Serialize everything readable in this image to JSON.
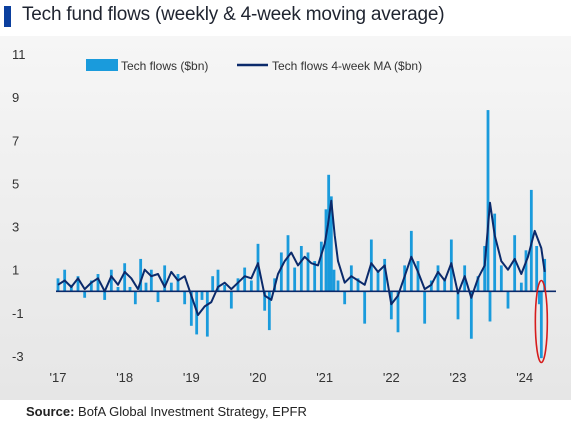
{
  "title": "Tech fund flows (weekly & 4-week moving average)",
  "source_label": "Source:",
  "source_text": "BofA Global Investment Strategy, EPFR",
  "colors": {
    "bars": "#1a9bdc",
    "ma_line": "#0b2a6b",
    "zero_line": "#0b2a6b",
    "highlight": "#d61c1c",
    "title_accent": "#0b3f9e"
  },
  "chart_data": {
    "type": "bar",
    "legend": [
      {
        "label": "Tech flows ($bn)",
        "kind": "bar"
      },
      {
        "label": "Tech flows 4-week MA ($bn)",
        "kind": "line"
      }
    ],
    "legend_position": "top",
    "y_ticks": [
      11,
      9,
      7,
      5,
      3,
      1,
      -1,
      -3
    ],
    "ylim": [
      -3,
      11
    ],
    "x_ticks": [
      "'17",
      "'18",
      "'19",
      "'20",
      "'21",
      "'22",
      "'23",
      "'24"
    ],
    "x_tick_years": [
      2017,
      2018,
      2019,
      2020,
      2021,
      2022,
      2023,
      2024
    ],
    "xlim": [
      2017.0,
      2024.35
    ],
    "series": [
      {
        "name": "Tech flows ($bn)",
        "type": "bar",
        "x": [
          2017.0,
          2017.1,
          2017.2,
          2017.3,
          2017.4,
          2017.5,
          2017.6,
          2017.7,
          2017.8,
          2017.9,
          2018.0,
          2018.08,
          2018.16,
          2018.24,
          2018.32,
          2018.4,
          2018.5,
          2018.6,
          2018.7,
          2018.8,
          2018.9,
          2019.0,
          2019.08,
          2019.16,
          2019.24,
          2019.32,
          2019.4,
          2019.5,
          2019.6,
          2019.7,
          2019.8,
          2019.9,
          2020.0,
          2020.1,
          2020.17,
          2020.25,
          2020.35,
          2020.45,
          2020.55,
          2020.65,
          2020.75,
          2020.85,
          2020.95,
          2021.02,
          2021.06,
          2021.1,
          2021.14,
          2021.2,
          2021.3,
          2021.4,
          2021.5,
          2021.6,
          2021.7,
          2021.8,
          2021.9,
          2022.0,
          2022.1,
          2022.2,
          2022.3,
          2022.4,
          2022.5,
          2022.6,
          2022.7,
          2022.8,
          2022.9,
          2023.0,
          2023.1,
          2023.2,
          2023.3,
          2023.4,
          2023.45,
          2023.48,
          2023.55,
          2023.65,
          2023.75,
          2023.85,
          2023.95,
          2024.02,
          2024.1,
          2024.18,
          2024.22,
          2024.25,
          2024.3
        ],
        "y": [
          0.6,
          1.0,
          0.3,
          0.7,
          -0.3,
          0.5,
          0.8,
          -0.4,
          1.0,
          0.2,
          1.3,
          0.2,
          -0.6,
          1.5,
          0.4,
          1.0,
          -0.5,
          1.2,
          0.4,
          0.8,
          -0.6,
          -1.6,
          -2.0,
          -0.4,
          -2.1,
          0.7,
          1.0,
          0.3,
          -0.8,
          0.6,
          1.1,
          0.5,
          2.2,
          -0.9,
          -1.8,
          0.6,
          1.8,
          2.6,
          1.1,
          2.1,
          1.8,
          1.4,
          2.3,
          3.8,
          5.4,
          4.4,
          1.0,
          0.5,
          -0.6,
          1.2,
          0.6,
          -1.5,
          2.4,
          0.9,
          1.5,
          -1.3,
          -1.9,
          1.2,
          2.8,
          1.4,
          -1.5,
          0.5,
          1.2,
          0.6,
          2.4,
          -1.3,
          1.2,
          -2.2,
          0.7,
          2.1,
          8.4,
          -1.4,
          3.6,
          1.2,
          -0.8,
          2.6,
          0.4,
          1.9,
          4.7,
          2.1,
          -0.6,
          -3.1,
          1.5
        ]
      },
      {
        "name": "Tech flows 4-week MA ($bn)",
        "type": "line",
        "x": [
          2017.0,
          2017.1,
          2017.2,
          2017.3,
          2017.4,
          2017.5,
          2017.6,
          2017.7,
          2017.8,
          2017.9,
          2018.0,
          2018.1,
          2018.2,
          2018.3,
          2018.4,
          2018.5,
          2018.6,
          2018.7,
          2018.8,
          2018.9,
          2019.0,
          2019.1,
          2019.2,
          2019.3,
          2019.4,
          2019.5,
          2019.6,
          2019.7,
          2019.8,
          2019.9,
          2020.0,
          2020.1,
          2020.2,
          2020.3,
          2020.4,
          2020.5,
          2020.6,
          2020.7,
          2020.8,
          2020.9,
          2021.0,
          2021.05,
          2021.1,
          2021.15,
          2021.2,
          2021.3,
          2021.4,
          2021.5,
          2021.6,
          2021.7,
          2021.8,
          2021.9,
          2022.0,
          2022.1,
          2022.2,
          2022.3,
          2022.4,
          2022.5,
          2022.6,
          2022.7,
          2022.8,
          2022.9,
          2023.0,
          2023.1,
          2023.2,
          2023.3,
          2023.4,
          2023.48,
          2023.55,
          2023.65,
          2023.75,
          2023.85,
          2023.95,
          2024.05,
          2024.15,
          2024.25,
          2024.3
        ],
        "y": [
          0.3,
          0.5,
          0.2,
          0.6,
          0.1,
          0.4,
          0.6,
          0.0,
          0.7,
          0.3,
          0.9,
          0.6,
          0.1,
          1.0,
          0.7,
          0.8,
          0.2,
          0.9,
          0.5,
          0.7,
          -0.2,
          -1.1,
          -0.7,
          -0.5,
          0.2,
          0.4,
          0.1,
          0.4,
          0.7,
          0.6,
          1.3,
          -0.2,
          -0.4,
          0.8,
          1.4,
          1.8,
          1.2,
          1.6,
          1.3,
          1.2,
          2.2,
          3.1,
          4.2,
          2.6,
          1.4,
          0.4,
          0.7,
          0.5,
          0.3,
          1.3,
          0.9,
          1.2,
          -0.6,
          -0.2,
          0.7,
          1.6,
          0.9,
          0.1,
          0.3,
          0.9,
          0.5,
          1.3,
          -0.1,
          0.7,
          -0.3,
          0.6,
          1.2,
          4.1,
          2.6,
          1.4,
          1.0,
          1.5,
          0.8,
          1.6,
          2.8,
          2.0,
          0.9
        ]
      }
    ],
    "annotation": {
      "shape": "ellipse",
      "x": 2024.25,
      "y": -1.4,
      "rx_years": 0.09,
      "ry_units": 1.9
    }
  }
}
